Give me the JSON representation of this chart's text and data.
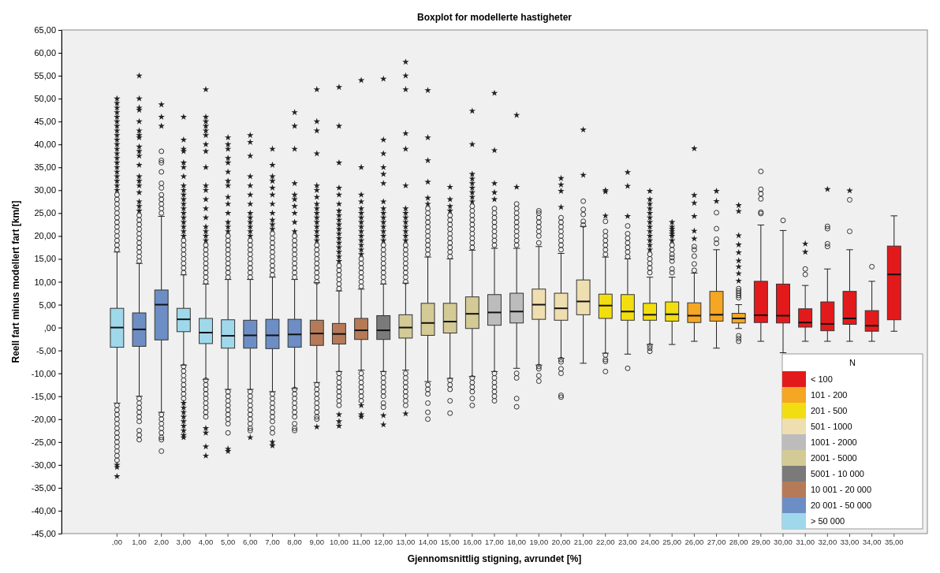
{
  "chart_data": {
    "type": "box",
    "title": "Boxplot for modellerte hastigheter",
    "xlabel": "Gjennomsnittlig stigning, avrundet [%]",
    "ylabel": "Reell fart minus modellert fart [km/t]",
    "legend_title": "N",
    "legend": "bottom right",
    "grid": false,
    "categories": [
      ",00",
      "1,00",
      "2,00",
      "3,00",
      "4,00",
      "5,00",
      "6,00",
      "7,00",
      "8,00",
      "9,00",
      "10,00",
      "11,00",
      "12,00",
      "13,00",
      "14,00",
      "15,00",
      "16,00",
      "17,00",
      "18,00",
      "19,00",
      "20,00",
      "21,00",
      "22,00",
      "23,00",
      "24,00",
      "25,00",
      "26,00",
      "27,00",
      "28,00",
      "29,00",
      "30,00",
      "31,00",
      "32,00",
      "33,00",
      "34,00",
      "35,00"
    ],
    "ylim": [
      -45,
      65
    ],
    "yticks": [
      {
        "value": -45,
        "label": "-45,00"
      },
      {
        "value": -40,
        "label": "-40,00"
      },
      {
        "value": -35,
        "label": "-35,00"
      },
      {
        "value": -30,
        "label": "-30,00"
      },
      {
        "value": -25,
        "label": "-25,00"
      },
      {
        "value": -20,
        "label": "-20,00"
      },
      {
        "value": -15,
        "label": "-15,00"
      },
      {
        "value": -10,
        "label": "-10,00"
      },
      {
        "value": -5,
        "label": "-5,00"
      },
      {
        "value": 0,
        "label": ",00"
      },
      {
        "value": 5,
        "label": "5,00"
      },
      {
        "value": 10,
        "label": "10,00"
      },
      {
        "value": 15,
        "label": "15,00"
      },
      {
        "value": 20,
        "label": "20,00"
      },
      {
        "value": 25,
        "label": "25,00"
      },
      {
        "value": 30,
        "label": "30,00"
      },
      {
        "value": 35,
        "label": "35,00"
      },
      {
        "value": 40,
        "label": "40,00"
      },
      {
        "value": 45,
        "label": "45,00"
      },
      {
        "value": 50,
        "label": "50,00"
      },
      {
        "value": 55,
        "label": "55,00"
      },
      {
        "value": 60,
        "label": "60,00"
      },
      {
        "value": 65,
        "label": "65,00"
      }
    ],
    "series": [
      {
        "name": "< 100",
        "color": "#e31a1c",
        "boxes": [
          null,
          null,
          null,
          null,
          null,
          null,
          null,
          null,
          null,
          null,
          null,
          null,
          null,
          null,
          null,
          null,
          null,
          null,
          null,
          null,
          null,
          null,
          null,
          null,
          null,
          null,
          null,
          null,
          null,
          {
            "low": -3,
            "q1": 1.1,
            "median": 2.7,
            "q3": 10.1,
            "high": 22.4,
            "outliers": [
              24.9,
              25.2,
              28.1,
              29.2,
              30.2,
              34.1
            ]
          },
          {
            "low": -5.5,
            "q1": 1,
            "median": 2.6,
            "q3": 9.5,
            "high": 21.2,
            "outliers": [
              23.4
            ]
          },
          {
            "low": -3,
            "q1": 0.1,
            "median": 1.1,
            "q3": 4.1,
            "high": 9.2,
            "outliers": [
              11.6,
              12.8,
              16.5,
              18.3
            ]
          },
          {
            "low": -3,
            "q1": -0.7,
            "median": 0.8,
            "q3": 5.6,
            "high": 12.8,
            "outliers": [
              17.7,
              18.3,
              21.6,
              22.1,
              30.2
            ]
          },
          {
            "low": -3,
            "q1": 0.7,
            "median": 2,
            "q3": 7.9,
            "high": 17,
            "outliers": [
              21,
              27.9,
              29.9
            ]
          },
          {
            "low": -3,
            "q1": -0.8,
            "median": 0.4,
            "q3": 3.7,
            "high": 10.1,
            "outliers": [
              13.3
            ]
          },
          {
            "low": -0.8,
            "q1": 1.7,
            "median": 11.6,
            "q3": 17.8,
            "high": 24.4
          }
        ]
      },
      {
        "name": "101 - 200",
        "color": "#f5a623",
        "boxes": [
          null,
          null,
          null,
          null,
          null,
          null,
          null,
          null,
          null,
          null,
          null,
          null,
          null,
          null,
          null,
          null,
          null,
          null,
          null,
          null,
          null,
          null,
          null,
          null,
          null,
          null,
          {
            "low": -3,
            "q1": 1.1,
            "median": 2.6,
            "q3": 5.4,
            "high": 11.9,
            "outliers": [
              12.5,
              13.9,
              15.6,
              17,
              17.7,
              19.4,
              21.1,
              24.3,
              27.2,
              28.9,
              39.1
            ]
          },
          {
            "low": -4.5,
            "q1": 1.4,
            "median": 2.8,
            "q3": 7.9,
            "high": 17,
            "outliers": [
              18.4,
              19.3,
              21.6,
              25.1,
              27.6,
              29.8
            ]
          },
          {
            "low": -0.2,
            "q1": 1,
            "median": 2,
            "q3": 3.1,
            "high": 5,
            "outliers": [
              6.5,
              7,
              7.5,
              8,
              8.5,
              10.2,
              11.8,
              13.3,
              14.6,
              16.4,
              18.1,
              20.1,
              25.4,
              26.7,
              -1.8,
              -2.4,
              -3
            ]
          },
          null,
          null,
          null,
          null,
          null,
          null,
          null
        ]
      },
      {
        "name": "201 - 500",
        "color": "#f2de10",
        "boxes": [
          null,
          null,
          null,
          null,
          null,
          null,
          null,
          null,
          null,
          null,
          null,
          null,
          null,
          null,
          null,
          null,
          null,
          null,
          null,
          null,
          null,
          null,
          {
            "low": -5.6,
            "q1": 2,
            "median": 4.8,
            "q3": 7.3,
            "high": 15.4,
            "outliers": [
              16,
              17,
              18,
              19,
              20,
              21,
              23.2,
              24.4,
              29.7,
              30,
              -6,
              -7,
              -7.4,
              -9.6
            ]
          },
          {
            "low": -5.8,
            "q1": 1.6,
            "median": 3.5,
            "q3": 7.2,
            "high": 15,
            "outliers": [
              15.5,
              16.5,
              17.5,
              18.5,
              19.5,
              20.5,
              22.2,
              24.3,
              30.9,
              33.9,
              -8.9
            ]
          },
          {
            "low": -3.7,
            "q1": 1.6,
            "median": 2.8,
            "q3": 5.3,
            "high": 11,
            "outliers": [
              12,
              13,
              14,
              15,
              16,
              17,
              18,
              19,
              20,
              21,
              22,
              23,
              24,
              25,
              26,
              27,
              28,
              29.8,
              -4,
              -4.5,
              -5.2
            ]
          },
          {
            "low": -3.7,
            "q1": 1.4,
            "median": 2.9,
            "q3": 5.6,
            "high": 11,
            "outliers": [
              12,
              12.8,
              14.5,
              15.3,
              16,
              17,
              18,
              19,
              20,
              20.5,
              21,
              21.5,
              22,
              23
            ]
          },
          null,
          null,
          null,
          null,
          null,
          null,
          null,
          null,
          null,
          null
        ]
      },
      {
        "name": "501 - 1000",
        "color": "#efdfb0",
        "boxes": [
          null,
          null,
          null,
          null,
          null,
          null,
          null,
          null,
          null,
          null,
          null,
          null,
          null,
          null,
          null,
          null,
          null,
          null,
          null,
          {
            "low": -8.2,
            "q1": 1.8,
            "median": 5,
            "q3": 8.4,
            "high": 17.7,
            "outliers": [
              18.5,
              20,
              21,
              22,
              23,
              24,
              25,
              25.5,
              -8.5,
              -9,
              -10.5,
              -11.7
            ]
          },
          {
            "low": -6.7,
            "q1": 1.6,
            "median": 4.2,
            "q3": 7.5,
            "high": 16.2,
            "outliers": [
              17,
              18,
              19,
              20,
              21,
              22,
              23,
              24,
              26.3,
              29.8,
              31.2,
              32.6,
              -7,
              -7.5,
              -9,
              -10,
              -14.8,
              -15.2
            ]
          },
          {
            "low": -7.8,
            "q1": 2.8,
            "median": 5.7,
            "q3": 10.4,
            "high": 22.1,
            "outliers": [
              22.4,
              23.2,
              24.7,
              25.8,
              27.6,
              33.3,
              43.2
            ]
          },
          null,
          null,
          null,
          null,
          null,
          null,
          null,
          null,
          null,
          null,
          null,
          null,
          null,
          null
        ]
      },
      {
        "name": "1001 - 2000",
        "color": "#bcbcbc",
        "boxes": [
          null,
          null,
          null,
          null,
          null,
          null,
          null,
          null,
          null,
          null,
          null,
          null,
          null,
          null,
          null,
          null,
          null,
          {
            "low": -9.6,
            "q1": 0.5,
            "median": 3.3,
            "q3": 7.2,
            "high": 17.3,
            "outliers": [
              18,
              19,
              20,
              21,
              22,
              23,
              24,
              25,
              26,
              28,
              29.5,
              31.5,
              38.7,
              51.2,
              -10,
              -11,
              -12,
              -13,
              -14,
              -15,
              -16
            ]
          },
          {
            "low": -8.9,
            "q1": 1,
            "median": 3.5,
            "q3": 7.5,
            "high": 17.3,
            "outliers": [
              18,
              19,
              20,
              21,
              22,
              23,
              24,
              25,
              26,
              27,
              30.7,
              46.4,
              -10,
              -11,
              -15.5,
              -17.3
            ]
          },
          null,
          null,
          null,
          null,
          null,
          null,
          null,
          null,
          null,
          null,
          null,
          null,
          null,
          null,
          null,
          null,
          null
        ]
      },
      {
        "name": "2001 - 5000",
        "color": "#d3ca96",
        "boxes": [
          null,
          null,
          null,
          null,
          null,
          null,
          null,
          null,
          null,
          null,
          null,
          null,
          null,
          {
            "low": -9.3,
            "q1": -2.3,
            "median": 0,
            "q3": 2.8,
            "high": 9.7,
            "outliers": [
              10,
              11,
              12,
              13,
              14,
              15,
              16,
              17,
              18,
              19,
              20,
              21,
              22,
              23,
              24,
              25,
              26,
              31,
              39,
              42.4,
              52,
              55,
              58,
              -10,
              -11,
              -12,
              -13,
              -14,
              -15,
              -16,
              -17,
              -18.8
            ]
          },
          {
            "low": -11.8,
            "q1": -1.7,
            "median": 1,
            "q3": 5.3,
            "high": 15.4,
            "outliers": [
              16,
              17,
              18,
              19,
              20,
              21,
              22,
              23,
              24,
              25,
              26,
              27,
              28.3,
              31.8,
              36.5,
              41.5,
              51.8,
              -12.5,
              -13.5,
              -14.5,
              -16.5,
              -18.5,
              -20
            ]
          },
          {
            "low": -11.1,
            "q1": -1.2,
            "median": 1.3,
            "q3": 5.3,
            "high": 15,
            "outliers": [
              15.5,
              16.5,
              17.5,
              18.5,
              19.5,
              20.5,
              21.5,
              22.5,
              23.5,
              24.5,
              25.5,
              26.5,
              28,
              30.7,
              -11.5,
              -12.5,
              -13.5,
              -16,
              -18.7
            ]
          },
          {
            "low": -10.7,
            "q1": -0.2,
            "median": 3,
            "q3": 6.7,
            "high": 16.9,
            "outliers": [
              17.5,
              18.5,
              19.5,
              20.5,
              21.5,
              22.5,
              23.5,
              24.5,
              25.5,
              26.5,
              27.5,
              28.5,
              29.5,
              30.5,
              31.5,
              32.5,
              33.5,
              40,
              47.3,
              -11,
              -12,
              -13,
              -14,
              -15.5,
              -17
            ]
          },
          null,
          null,
          null,
          null,
          null,
          null,
          null,
          null,
          null,
          null,
          null,
          null,
          null,
          null,
          null,
          null,
          null,
          null,
          null
        ]
      },
      {
        "name": "5001 - 10 000",
        "color": "#7a7a7a",
        "boxes": [
          null,
          null,
          null,
          null,
          null,
          null,
          null,
          null,
          null,
          null,
          null,
          null,
          {
            "low": -9.6,
            "q1": -2.6,
            "median": -0.6,
            "q3": 2.6,
            "high": 9.5,
            "outliers": [
              10,
              11,
              12,
              13,
              14,
              15,
              16,
              17,
              18,
              19,
              20,
              21,
              22,
              23,
              24,
              25,
              26,
              27.5,
              31.5,
              33.5,
              35,
              38,
              41,
              54.3,
              -10,
              -11,
              -12,
              -13,
              -14,
              -15,
              -16.5,
              -17.4,
              -19.2,
              -21.2
            ]
          },
          null,
          null,
          null,
          null,
          null,
          null,
          null,
          null,
          null,
          null,
          null,
          null,
          null,
          null,
          null,
          null,
          null,
          null,
          null,
          null,
          null,
          null,
          null
        ]
      },
      {
        "name": "10 001 - 20 000",
        "color": "#b67a58",
        "boxes": [
          null,
          null,
          null,
          null,
          null,
          null,
          null,
          null,
          null,
          {
            "low": -12,
            "q1": -3.9,
            "median": -1.3,
            "q3": 1.6,
            "high": 9.8,
            "outliers": [
              10,
              11,
              12,
              13,
              14,
              15,
              16,
              17,
              18,
              19,
              20,
              21,
              22,
              23,
              24,
              25,
              26,
              27,
              28.5,
              30,
              31,
              38,
              43,
              45,
              52,
              -12.5,
              -13.5,
              -14.5,
              -15.5,
              -16.5,
              -17.5,
              -18.5,
              -19.5,
              -20,
              -21.7
            ]
          },
          {
            "low": -9.6,
            "q1": -3.6,
            "median": -1.4,
            "q3": 0.9,
            "high": 8,
            "outliers": [
              8.5,
              9.5,
              10.5,
              11.5,
              12.5,
              13.5,
              14.5,
              15.5,
              16.5,
              17.5,
              18.5,
              19.5,
              20.5,
              21.5,
              22.5,
              23.5,
              24.5,
              25.5,
              27,
              29,
              30.5,
              36,
              44,
              52.5,
              -10,
              -11,
              -12,
              -13,
              -14,
              -15,
              -16,
              -17,
              -19,
              -20.5,
              -21.5
            ]
          },
          {
            "low": -9.3,
            "q1": -2.6,
            "median": -0.6,
            "q3": 2,
            "high": 8.4,
            "outliers": [
              9,
              10,
              11,
              12,
              13,
              14,
              15,
              16,
              17,
              18,
              19,
              20,
              21,
              22,
              23,
              24,
              25,
              26,
              27.5,
              29,
              35,
              54,
              -10,
              -11,
              -12,
              -13,
              -14,
              -15,
              -16,
              -17,
              -19,
              -19.5
            ]
          },
          null,
          null,
          null,
          null,
          null,
          null,
          null,
          null,
          null,
          null,
          null,
          null,
          null,
          null,
          null,
          null,
          null,
          null,
          null,
          null,
          null,
          null,
          null,
          null
        ]
      },
      {
        "name": "20 001 - 50 000",
        "color": "#6d8ec4",
        "boxes": [
          null,
          {
            "low": -15,
            "q1": -4.1,
            "median": -0.4,
            "q3": 3.2,
            "high": 14,
            "outliers": [
              14.5,
              15.5,
              16.5,
              17.5,
              18.5,
              19.5,
              20.5,
              21.5,
              22.5,
              23.5,
              24.5,
              25.5,
              26.5,
              27.5,
              29.5,
              31,
              32,
              33,
              35.5,
              37.5,
              38.5,
              39.5,
              41.5,
              42,
              43,
              45,
              47.5,
              48,
              50,
              55,
              -15.5,
              -16.5,
              -17.5,
              -18.5,
              -19.5,
              -20.5,
              -22.5,
              -23.5,
              -24.5
            ]
          },
          {
            "low": -18.5,
            "q1": -2.7,
            "median": 5,
            "q3": 8.2,
            "high": 24.3,
            "outliers": [
              25,
              26,
              27,
              28,
              29,
              30.5,
              31.5,
              34,
              36,
              36.5,
              38.5,
              44,
              46,
              48.7,
              -19,
              -20,
              -21,
              -22,
              -23,
              -24,
              -24.5,
              -27
            ]
          },
          null,
          null,
          null,
          {
            "low": -13.5,
            "q1": -4.5,
            "median": -1.7,
            "q3": 1.6,
            "high": 10.5,
            "outliers": [
              11,
              12,
              13,
              14,
              15,
              16,
              17,
              18,
              19,
              20,
              21,
              22,
              23,
              24,
              25,
              27,
              29,
              31,
              33,
              37.5,
              40.5,
              42,
              -14,
              -15,
              -16,
              -17,
              -18,
              -19,
              -20,
              -21,
              -22,
              -22.5,
              -24
            ]
          },
          {
            "low": -14,
            "q1": -4.6,
            "median": -1.7,
            "q3": 1.8,
            "high": 11,
            "outliers": [
              11.5,
              12.5,
              13.5,
              14.5,
              15.5,
              16.5,
              17.5,
              18.5,
              19.5,
              20.5,
              21.5,
              22.5,
              23.5,
              25,
              27,
              29,
              30.5,
              32,
              33,
              35.5,
              39,
              -14.5,
              -15.5,
              -16.5,
              -17.5,
              -18.5,
              -19.5,
              -20.5,
              -22,
              -23,
              -25,
              -25.8
            ]
          },
          {
            "low": -13.3,
            "q1": -4.3,
            "median": -1.5,
            "q3": 1.8,
            "high": 10.5,
            "outliers": [
              11,
              12,
              13,
              14,
              15,
              16,
              17,
              18,
              19,
              20,
              21,
              23,
              25,
              26.5,
              28,
              29,
              31.5,
              39,
              44,
              47,
              -13.5,
              -14.5,
              -15.5,
              -16.5,
              -17.5,
              -18.5,
              -19.5,
              -21,
              -22,
              -22.5
            ]
          },
          null,
          null,
          null,
          null,
          null,
          null,
          null,
          null,
          null,
          null,
          null,
          null,
          null,
          null,
          null,
          null,
          null,
          null,
          null,
          null,
          null,
          null,
          null,
          null,
          null,
          null,
          null
        ]
      },
      {
        "name": "> 50 000",
        "color": "#9fd8ea",
        "boxes": [
          {
            "low": -16.5,
            "q1": -4.3,
            "median": 0,
            "q3": 4.2,
            "high": 16.5,
            "outliers": [
              17,
              18,
              19,
              20,
              21,
              22,
              23,
              24,
              25,
              26,
              27,
              28,
              29,
              30,
              31,
              32,
              33,
              34,
              35,
              36,
              37,
              38,
              39,
              40,
              41,
              42,
              43,
              44,
              45,
              46,
              47,
              48,
              49,
              50,
              -17,
              -18,
              -19,
              -20,
              -21,
              -22,
              -23,
              -24,
              -25,
              -26,
              -27,
              -28,
              -29,
              -30,
              -30.5,
              -32.5
            ]
          },
          null,
          null,
          {
            "low": -8.2,
            "q1": -0.9,
            "median": 1.8,
            "q3": 4.2,
            "high": 11.5,
            "outliers": [
              12,
              13,
              14,
              15,
              16,
              17,
              18,
              19,
              20,
              21,
              22,
              23,
              24,
              25,
              26,
              27,
              28,
              29,
              30,
              31,
              33,
              35,
              36,
              38.5,
              39,
              41,
              46,
              -8.5,
              -9.5,
              -10.5,
              -11.5,
              -12.5,
              -13.5,
              -14.5,
              -15.5,
              -16.5,
              -17.5,
              -18.5,
              -19.5,
              -20.5,
              -21.5,
              -22.5,
              -23.5,
              -24
            ]
          },
          {
            "low": -11.3,
            "q1": -3.5,
            "median": -1.1,
            "q3": 2,
            "high": 9.5,
            "outliers": [
              10,
              11,
              12,
              13,
              14,
              15,
              16,
              17,
              18,
              19,
              20,
              21,
              22,
              24,
              26,
              28,
              30,
              31,
              35,
              38.5,
              40,
              42,
              43,
              44,
              45,
              46,
              52,
              -11.5,
              -12.5,
              -13.5,
              -14.5,
              -15.5,
              -16.5,
              -17.5,
              -18.5,
              -19.5,
              -22,
              -23,
              -26,
              -28
            ]
          },
          {
            "low": -13.5,
            "q1": -4.5,
            "median": -1.8,
            "q3": 1.7,
            "high": 10.5,
            "outliers": [
              11,
              12,
              13,
              14,
              15,
              16,
              17,
              18,
              19,
              20,
              21,
              22,
              23,
              25,
              27,
              28.5,
              31,
              32,
              34,
              36,
              37,
              39,
              40,
              41.5,
              -14,
              -15,
              -16,
              -17,
              -18,
              -19,
              -20,
              -21,
              -23,
              -26.5,
              -27
            ]
          },
          null,
          null,
          null,
          null,
          null,
          null,
          null,
          null,
          null,
          null,
          null,
          null,
          null,
          null,
          null,
          null,
          null,
          null,
          null,
          null,
          null,
          null,
          null,
          null,
          null,
          null,
          null,
          null,
          null,
          null
        ]
      }
    ]
  }
}
